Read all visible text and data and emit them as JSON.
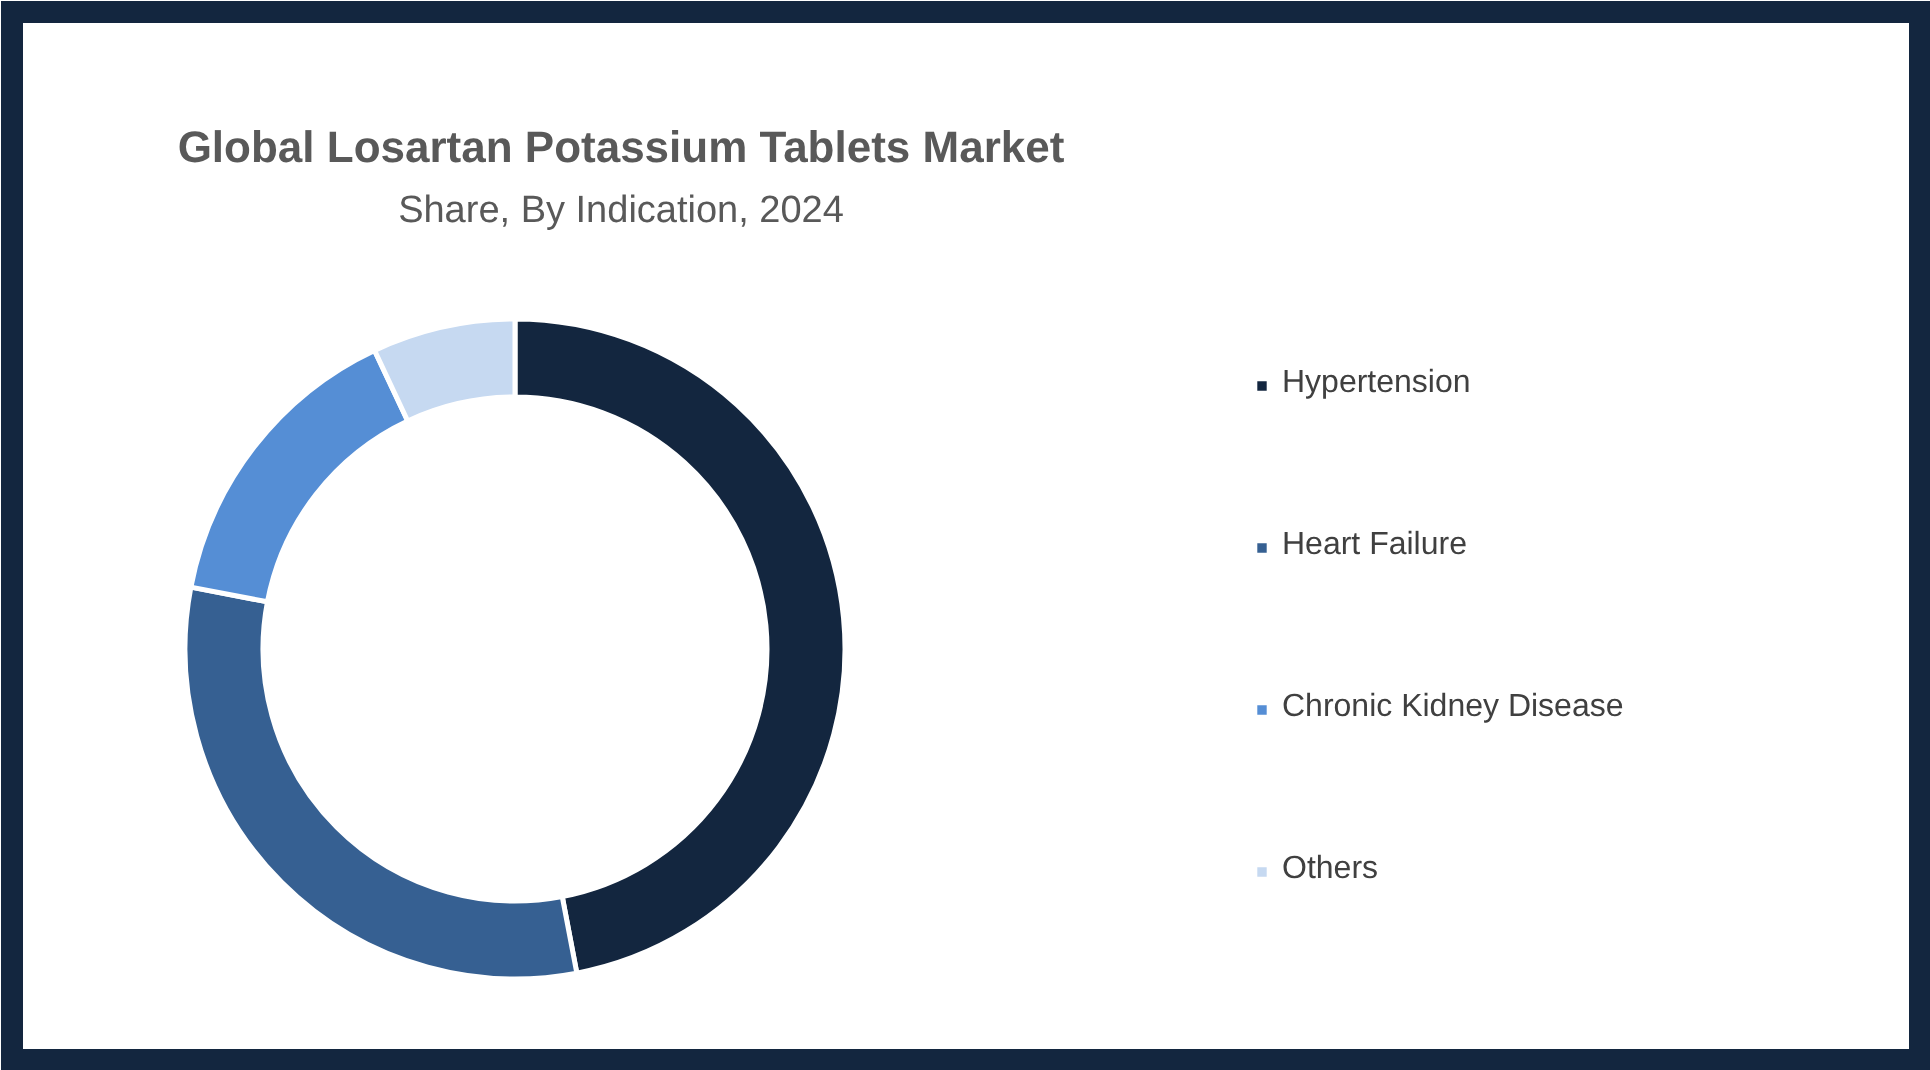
{
  "chart_data": {
    "type": "donut",
    "title": "Global Losartan Potassium Tablets Market",
    "subtitle": "Share, By Indication, 2024",
    "categories": [
      "Hypertension",
      "Heart Failure",
      "Chronic Kidney Disease",
      "Others"
    ],
    "values": [
      47,
      31,
      15,
      7
    ],
    "colors": [
      "#13263f",
      "#366092",
      "#558ed5",
      "#c6d9f1"
    ],
    "legend": "right"
  }
}
